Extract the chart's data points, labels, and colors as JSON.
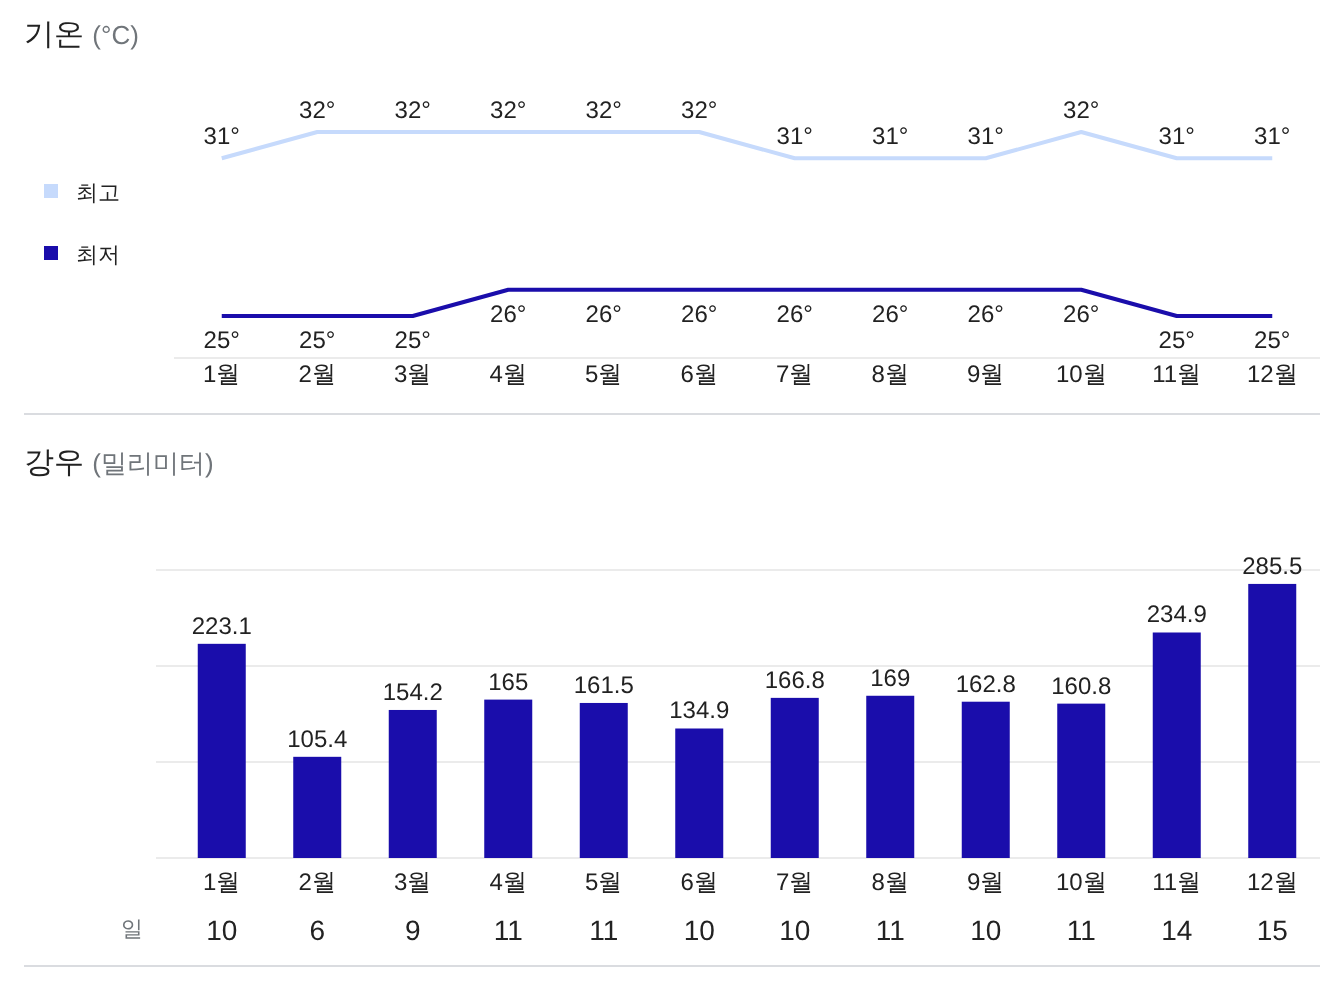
{
  "chart_data": [
    {
      "type": "line",
      "title": "기온 (°C)",
      "categories": [
        "1월",
        "2월",
        "3월",
        "4월",
        "5월",
        "6월",
        "7월",
        "8월",
        "9월",
        "10월",
        "11월",
        "12월"
      ],
      "tick_labels": "x",
      "legend": "left",
      "marker": "none",
      "series": [
        {
          "name": "최고",
          "color": "#c6dafc",
          "values": [
            31,
            32,
            32,
            32,
            32,
            32,
            31,
            31,
            31,
            32,
            31,
            31
          ],
          "value_labels": [
            "31°",
            "32°",
            "32°",
            "32°",
            "32°",
            "32°",
            "31°",
            "31°",
            "31°",
            "32°",
            "31°",
            "31°"
          ]
        },
        {
          "name": "최저",
          "color": "#1a0dab",
          "values": [
            25,
            25,
            25,
            26,
            26,
            26,
            26,
            26,
            26,
            26,
            25,
            25
          ],
          "value_labels": [
            "25°",
            "25°",
            "25°",
            "26°",
            "26°",
            "26°",
            "26°",
            "26°",
            "26°",
            "26°",
            "25°",
            "25°"
          ]
        }
      ]
    },
    {
      "type": "bar",
      "title": "강우 (밀리미터)",
      "categories": [
        "1월",
        "2월",
        "3월",
        "4월",
        "5월",
        "6월",
        "7월",
        "8월",
        "9월",
        "10월",
        "11월",
        "12월"
      ],
      "color": "#1a0dab",
      "values": [
        223.1,
        105.4,
        154.2,
        165,
        161.5,
        134.9,
        166.8,
        169,
        162.8,
        160.8,
        234.9,
        285.5
      ],
      "ylim": [
        0,
        300
      ],
      "yticks": [
        {
          "value": 0,
          "label": null
        },
        {
          "value": 100,
          "label": null
        },
        {
          "value": 200,
          "label": null
        },
        {
          "value": 300,
          "label": null
        }
      ],
      "grid": "y",
      "tick_labels": "x",
      "data_labels": true
    },
    {
      "type": "other",
      "ylabel": "일",
      "categories": [
        null,
        null,
        null,
        null,
        null,
        null,
        null,
        null,
        null,
        null,
        null,
        null
      ],
      "values": [
        10,
        6,
        9,
        11,
        11,
        10,
        10,
        11,
        10,
        11,
        14,
        15
      ],
      "data_labels": true
    }
  ]
}
